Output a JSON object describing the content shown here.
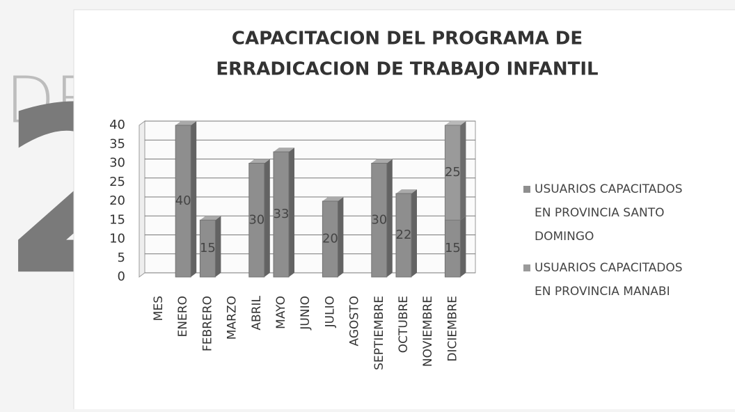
{
  "background": {
    "texts": [
      "DE",
      "2"
    ]
  },
  "chart_data": {
    "type": "bar",
    "stacked": true,
    "title": [
      "CAPACITACION DEL PROGRAMA DE",
      "ERRADICACION DE TRABAJO INFANTIL"
    ],
    "categories": [
      "MES",
      "ENERO",
      "FEBRERO",
      "MARZO",
      "ABRIL",
      "MAYO",
      "JUNIO",
      "JULIO",
      "AGOSTO",
      "SEPTIEMBRE",
      "OCTUBRE",
      "NOVIEMBRE",
      "DICIEMBRE"
    ],
    "series": [
      {
        "name": "USUARIOS CAPACITADOS EN PROVINCIA SANTO DOMINGO",
        "color": "#8e8e8e",
        "values": [
          null,
          40,
          15,
          null,
          30,
          33,
          null,
          20,
          null,
          30,
          22,
          null,
          15
        ]
      },
      {
        "name": "USUARIOS CAPACITADOS EN PROVINCIA MANABI",
        "color": "#9a9a9a",
        "values": [
          null,
          null,
          null,
          null,
          null,
          null,
          null,
          null,
          null,
          null,
          null,
          null,
          25
        ]
      }
    ],
    "ylim": [
      0,
      40
    ],
    "yticks": [
      0,
      5,
      10,
      15,
      20,
      25,
      30,
      35,
      40
    ],
    "grid": true,
    "legend": "right"
  }
}
